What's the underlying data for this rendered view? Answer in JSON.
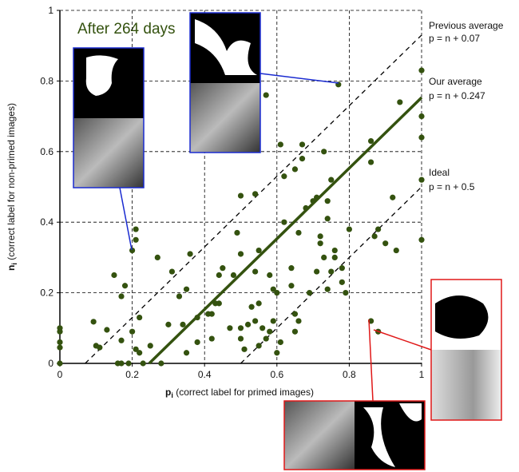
{
  "chart_data": {
    "type": "scatter",
    "annotation": "After 264 days",
    "xlabel": {
      "main": "p",
      "sub": "i",
      "rest": " (correct label for primed images)"
    },
    "ylabel": {
      "main": "n",
      "sub": "i",
      "rest": " (correct label for non-primed images)"
    },
    "xlim": [
      0,
      1
    ],
    "ylim": [
      0,
      1
    ],
    "xticks": [
      0,
      0.2,
      0.4,
      0.6,
      0.8,
      1
    ],
    "yticks": [
      0,
      0.2,
      0.4,
      0.6,
      0.8,
      1
    ],
    "grid": true,
    "color": "#34520f",
    "x": [
      0,
      0,
      0,
      0,
      0,
      0.093,
      0.1,
      0.11,
      0.13,
      0.15,
      0.16,
      0.17,
      0.17,
      0.17,
      0.18,
      0.19,
      0.2,
      0.2,
      0.21,
      0.21,
      0.21,
      0.22,
      0.22,
      0.23,
      0.25,
      0.27,
      0.28,
      0.3,
      0.31,
      0.33,
      0.34,
      0.35,
      0.35,
      0.36,
      0.38,
      0.38,
      0.41,
      0.42,
      0.42,
      0.43,
      0.44,
      0.44,
      0.45,
      0.47,
      0.48,
      0.49,
      0.5,
      0.5,
      0.5,
      0.51,
      0.5,
      0.52,
      0.53,
      0.54,
      0.54,
      0.54,
      0.55,
      0.55,
      0.55,
      0.56,
      0.57,
      0.58,
      0.58,
      0.59,
      0.6,
      0.6,
      0.61,
      0.61,
      0.62,
      0.62,
      0.64,
      0.64,
      0.65,
      0.65,
      0.65,
      0.66,
      0.66,
      0.67,
      0.67,
      0.68,
      0.69,
      0.7,
      0.71,
      0.71,
      0.72,
      0.72,
      0.73,
      0.73,
      0.74,
      0.74,
      0.74,
      0.75,
      0.75,
      0.76,
      0.76,
      0.77,
      0.78,
      0.78,
      0.79,
      0.8,
      0.86,
      0.86,
      0.86,
      0.87,
      0.88,
      0.88,
      0.9,
      0.92,
      0.93,
      0.94,
      1,
      1,
      1,
      1,
      1,
      0.57,
      0.59
    ],
    "values": [
      0.1,
      0.09,
      0.06,
      0.045,
      0,
      0.118,
      0.05,
      0.045,
      0.095,
      0.25,
      0,
      0,
      0.065,
      0.19,
      0.22,
      0,
      0.32,
      0.09,
      0.35,
      0.38,
      0.04,
      0.03,
      0.13,
      0,
      0.05,
      0.3,
      0,
      0.11,
      0.26,
      0.19,
      0.11,
      0.21,
      0.03,
      0.31,
      0.13,
      0.06,
      0.14,
      0.14,
      0.07,
      0.17,
      0.25,
      0.17,
      0.27,
      0.1,
      0.25,
      0.37,
      0.31,
      0.1,
      0.07,
      0.04,
      0.475,
      0.11,
      0.16,
      0.12,
      0.26,
      0.48,
      0.17,
      0.32,
      0.05,
      0.1,
      0.07,
      0.09,
      0.25,
      0.12,
      0.03,
      0.2,
      0.06,
      0.62,
      0.53,
      0.4,
      0.27,
      0.22,
      0.09,
      0.55,
      0.14,
      0.37,
      0.12,
      0.62,
      0.58,
      0.44,
      0.2,
      0.46,
      0.47,
      0.26,
      0.36,
      0.34,
      0.3,
      0.6,
      0.21,
      0.41,
      0.46,
      0.52,
      0.26,
      0.3,
      0.32,
      0.79,
      0.27,
      0.23,
      0.2,
      0.38,
      0.12,
      0.57,
      0.63,
      0.36,
      0.09,
      0.38,
      0.34,
      0.47,
      0.32,
      0.74,
      0.83,
      0.7,
      0.64,
      0.52,
      0.35,
      0.76,
      0.21
    ],
    "lines": [
      {
        "name": "Previous average",
        "equation": "p = n + 0.07",
        "offset": 0.07,
        "dashed": true,
        "color": "#000000"
      },
      {
        "name": "Our average",
        "equation": "p = n + 0.247",
        "offset": 0.247,
        "dashed": false,
        "color": "#34520f"
      },
      {
        "name": "Ideal",
        "equation": "p = n + 0.5",
        "offset": 0.5,
        "dashed": true,
        "color": "#000000"
      }
    ]
  }
}
